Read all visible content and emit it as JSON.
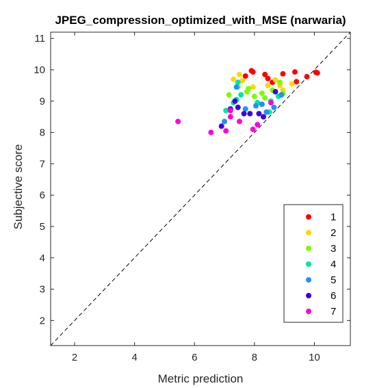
{
  "chart_data": {
    "type": "scatter",
    "title": "JPEG_compression_optimized_with_MSE (narwaria)",
    "xlabel": "Metric prediction",
    "ylabel": "Subjective score",
    "xlim": [
      1.2,
      11.2
    ],
    "ylim": [
      1.2,
      11.2
    ],
    "xticks": [
      2,
      4,
      6,
      8,
      10
    ],
    "yticks": [
      2,
      3,
      4,
      5,
      6,
      7,
      8,
      9,
      10,
      11
    ],
    "grid": false,
    "legend_position": "bottom-right",
    "reference_line": "y = x (dashed)",
    "series": [
      {
        "name": "1",
        "color": "#ff0000",
        "points": [
          [
            7.7,
            9.8
          ],
          [
            7.9,
            9.97
          ],
          [
            7.95,
            9.93
          ],
          [
            8.35,
            9.85
          ],
          [
            8.45,
            9.72
          ],
          [
            8.6,
            9.6
          ],
          [
            8.95,
            9.87
          ],
          [
            9.35,
            9.93
          ],
          [
            9.4,
            9.62
          ],
          [
            9.75,
            9.78
          ],
          [
            10.05,
            9.92
          ],
          [
            10.1,
            9.9
          ]
        ]
      },
      {
        "name": "2",
        "color": "#ffd700",
        "points": [
          [
            7.3,
            9.7
          ],
          [
            7.5,
            9.85
          ],
          [
            7.6,
            9.65
          ],
          [
            7.95,
            9.45
          ],
          [
            8.45,
            9.5
          ],
          [
            8.7,
            9.68
          ],
          [
            8.85,
            9.5
          ],
          [
            9.25,
            9.55
          ],
          [
            8.95,
            9.35
          ]
        ]
      },
      {
        "name": "3",
        "color": "#7cfc00",
        "points": [
          [
            7.15,
            9.2
          ],
          [
            7.45,
            9.45
          ],
          [
            7.8,
            9.4
          ],
          [
            7.75,
            9.3
          ],
          [
            8.0,
            9.15
          ],
          [
            8.25,
            9.25
          ],
          [
            8.35,
            9.1
          ],
          [
            8.6,
            9.35
          ],
          [
            8.85,
            9.6
          ],
          [
            8.95,
            9.25
          ]
        ]
      },
      {
        "name": "4",
        "color": "#00e5a0",
        "points": [
          [
            7.05,
            8.7
          ],
          [
            7.3,
            8.95
          ],
          [
            7.4,
            9.05
          ],
          [
            7.45,
            9.6
          ],
          [
            7.55,
            9.2
          ],
          [
            8.1,
            8.95
          ],
          [
            8.5,
            8.65
          ],
          [
            8.8,
            9.15
          ],
          [
            8.55,
            9.0
          ]
        ]
      },
      {
        "name": "5",
        "color": "#1e90ff",
        "points": [
          [
            7.0,
            8.35
          ],
          [
            7.4,
            9.45
          ],
          [
            7.7,
            8.75
          ],
          [
            8.05,
            8.85
          ],
          [
            8.25,
            8.9
          ],
          [
            8.4,
            8.65
          ],
          [
            8.65,
            8.8
          ],
          [
            8.9,
            9.2
          ]
        ]
      },
      {
        "name": "6",
        "color": "#3a00e0",
        "points": [
          [
            6.9,
            8.2
          ],
          [
            7.2,
            8.75
          ],
          [
            7.35,
            9.0
          ],
          [
            7.45,
            8.8
          ],
          [
            7.65,
            8.6
          ],
          [
            7.85,
            8.6
          ],
          [
            8.15,
            8.6
          ],
          [
            8.3,
            8.5
          ],
          [
            8.7,
            9.3
          ]
        ]
      },
      {
        "name": "7",
        "color": "#ff00dd",
        "points": [
          [
            5.45,
            8.35
          ],
          [
            6.55,
            8.0
          ],
          [
            7.05,
            8.05
          ],
          [
            7.2,
            8.5
          ],
          [
            7.5,
            8.35
          ],
          [
            7.95,
            8.1
          ],
          [
            8.1,
            8.25
          ],
          [
            8.55,
            8.95
          ],
          [
            7.2,
            8.7
          ]
        ]
      }
    ]
  }
}
